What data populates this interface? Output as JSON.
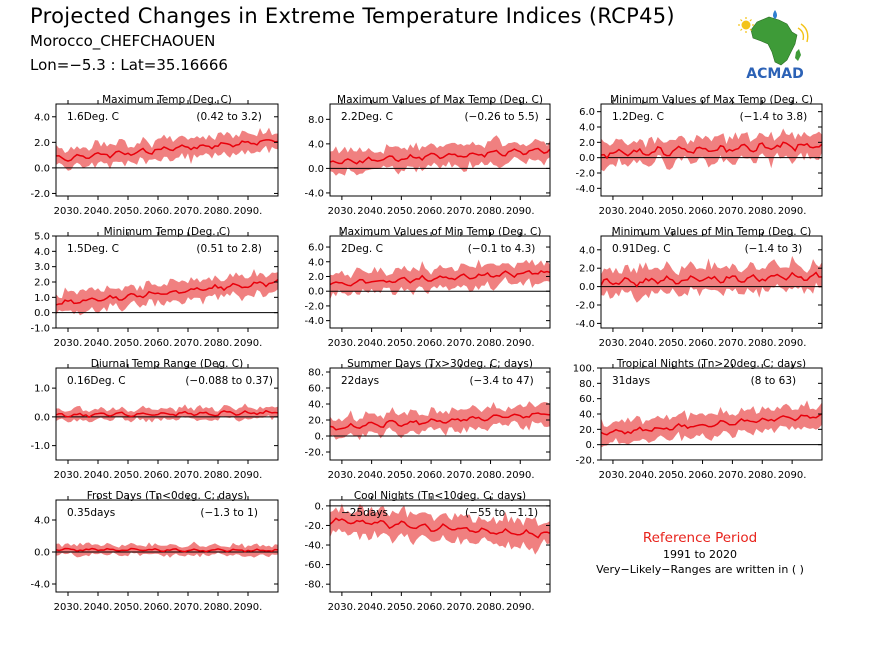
{
  "header": {
    "title": "Projected Changes in Extreme Temperature Indices (RCP45)",
    "location": "Morocco_CHEFCHAOUEN",
    "coords": "Lon=−5.3 : Lat=35.16666"
  },
  "logo": {
    "name": "ACMAD",
    "icon": "africa-map-logo"
  },
  "reference": {
    "title": "Reference Period",
    "years": "1991 to 2020",
    "note": "Very−Likely−Ranges are written in ( )"
  },
  "colors": {
    "band": "#f08080",
    "line": "#e8000b",
    "refline": "#000000",
    "title_red": "#e8231c"
  },
  "chart_data": [
    {
      "type": "line",
      "title": "Maximum Temp (Deg. C)",
      "value": "1.6Deg. C",
      "range": "(0.42 to 3.2)",
      "x_ticks": [
        "2030.",
        "2040.",
        "2050.",
        "2060.",
        "2070.",
        "2080.",
        "2090."
      ],
      "xlim": [
        2026,
        2100
      ],
      "y_ticks": [
        -2.0,
        0.0,
        2.0,
        4.0
      ],
      "y_tick_labels": [
        "-2.0",
        "0.0",
        "2.0",
        "4.0"
      ],
      "ylim": [
        -2.2,
        5.0
      ],
      "start": 0.7,
      "end": 2.2,
      "amp": 1.2,
      "noise": 0.25,
      "dip": 0
    },
    {
      "type": "line",
      "title": "Maximum Values of Max Temp (Deg. C)",
      "value": "2.2Deg. C",
      "range": "(−0.26 to 5.5)",
      "x_ticks": [
        "2030.",
        "2040.",
        "2050.",
        "2060.",
        "2070.",
        "2080.",
        "2090."
      ],
      "xlim": [
        2026,
        2100
      ],
      "y_ticks": [
        -4.0,
        0.0,
        4.0,
        8.0
      ],
      "y_tick_labels": [
        "-4.0",
        "0.0",
        "4.0",
        "8.0"
      ],
      "ylim": [
        -4.5,
        10.5
      ],
      "start": 1.0,
      "end": 3.0,
      "amp": 2.8,
      "noise": 0.5,
      "dip": 0
    },
    {
      "type": "line",
      "title": "Minimum Values of Max Temp (Deg. C)",
      "value": "1.2Deg. C",
      "range": "(−1.4 to 3.8)",
      "x_ticks": [
        "2030.",
        "2040.",
        "2050.",
        "2060.",
        "2070.",
        "2080.",
        "2090."
      ],
      "xlim": [
        2026,
        2100
      ],
      "y_ticks": [
        -4.0,
        -2.0,
        0.0,
        2.0,
        4.0,
        6.0
      ],
      "y_tick_labels": [
        "-4.0",
        "-2.0",
        "0.0",
        "2.0",
        "4.0",
        "6.0"
      ],
      "ylim": [
        -5.0,
        7.0
      ],
      "start": 0.5,
      "end": 1.6,
      "amp": 2.5,
      "noise": 0.6,
      "dip": 0
    },
    {
      "type": "line",
      "title": "Minimum Temp (Deg. C)",
      "value": "1.5Deg. C",
      "range": "(0.51 to 2.8)",
      "x_ticks": [
        "2030.",
        "2040.",
        "2050.",
        "2060.",
        "2070.",
        "2080.",
        "2090."
      ],
      "xlim": [
        2026,
        2100
      ],
      "y_ticks": [
        -1.0,
        0.0,
        1.0,
        2.0,
        3.0,
        4.0,
        5.0
      ],
      "y_tick_labels": [
        "-1.0",
        "0.0",
        "1.0",
        "2.0",
        "3.0",
        "4.0",
        "5.0"
      ],
      "ylim": [
        -1.0,
        5.0
      ],
      "start": 0.6,
      "end": 2.0,
      "amp": 1.0,
      "noise": 0.2,
      "dip": 0
    },
    {
      "type": "line",
      "title": "Maximum Values of Min Temp (Deg. C)",
      "value": "2Deg. C",
      "range": "(−0.1 to 4.3)",
      "x_ticks": [
        "2030.",
        "2040.",
        "2050.",
        "2060.",
        "2070.",
        "2080.",
        "2090."
      ],
      "xlim": [
        2026,
        2100
      ],
      "y_ticks": [
        -4.0,
        -2.0,
        0.0,
        2.0,
        4.0,
        6.0
      ],
      "y_tick_labels": [
        "-4.0",
        "-2.0",
        "0.0",
        "2.0",
        "4.0",
        "6.0"
      ],
      "ylim": [
        -5.0,
        7.5
      ],
      "start": 1.0,
      "end": 2.6,
      "amp": 2.2,
      "noise": 0.45,
      "dip": 0
    },
    {
      "type": "line",
      "title": "Minimum Values of Min Temp (Deg. C)",
      "value": "0.91Deg. C",
      "range": "(−1.4 to 3)",
      "x_ticks": [
        "2030.",
        "2040.",
        "2050.",
        "2060.",
        "2070.",
        "2080.",
        "2090."
      ],
      "xlim": [
        2026,
        2100
      ],
      "y_ticks": [
        -4.0,
        -2.0,
        0.0,
        2.0,
        4.0
      ],
      "y_tick_labels": [
        "-4.0",
        "-2.0",
        "0.0",
        "2.0",
        "4.0"
      ],
      "ylim": [
        -4.5,
        5.5
      ],
      "start": 0.4,
      "end": 1.2,
      "amp": 2.2,
      "noise": 0.5,
      "dip": 0
    },
    {
      "type": "line",
      "title": "Diurnal Temp Range (Deg. C)",
      "value": "0.16Deg. C",
      "range": "(−0.088 to 0.37)",
      "x_ticks": [
        "2030.",
        "2040.",
        "2050.",
        "2060.",
        "2070.",
        "2080.",
        "2090."
      ],
      "xlim": [
        2026,
        2100
      ],
      "y_ticks": [
        -1.0,
        0.0,
        1.0
      ],
      "y_tick_labels": [
        "-1.0",
        "0.0",
        "1.0"
      ],
      "ylim": [
        -1.5,
        1.7
      ],
      "start": 0.05,
      "end": 0.15,
      "amp": 0.3,
      "noise": 0.08,
      "dip": 0
    },
    {
      "type": "line",
      "title": "Summer Days (Tx>30deg. C; days)",
      "value": "22days",
      "range": "(−3.4 to 47)",
      "x_ticks": [
        "2030.",
        "2040.",
        "2050.",
        "2060.",
        "2070.",
        "2080.",
        "2090."
      ],
      "xlim": [
        2026,
        2100
      ],
      "y_ticks": [
        -20,
        0,
        20,
        40,
        60,
        80
      ],
      "y_tick_labels": [
        "-20.",
        "0.",
        "20.",
        "40.",
        "60.",
        "80."
      ],
      "ylim": [
        -30,
        85
      ],
      "start": 10,
      "end": 28,
      "amp": 20,
      "noise": 4,
      "dip": 0
    },
    {
      "type": "line",
      "title": "Tropical Nights (Tn>20deg. C; days)",
      "value": "31days",
      "range": "(8 to 63)",
      "x_ticks": [
        "2030.",
        "2040.",
        "2050.",
        "2060.",
        "2070.",
        "2080.",
        "2090."
      ],
      "xlim": [
        2026,
        2100
      ],
      "y_ticks": [
        -20,
        0,
        20,
        40,
        60,
        80,
        100
      ],
      "y_tick_labels": [
        "-20.",
        "0.",
        "20.",
        "40.",
        "60.",
        "80.",
        "100."
      ],
      "ylim": [
        -20,
        100
      ],
      "start": 15,
      "end": 38,
      "amp": 22,
      "noise": 4,
      "dip": 0
    },
    {
      "type": "line",
      "title": "Frost Days (Tn<0deg. C; days)",
      "value": "0.35days",
      "range": "(−1.3 to 1)",
      "x_ticks": [
        "2030.",
        "2040.",
        "2050.",
        "2060.",
        "2070.",
        "2080.",
        "2090."
      ],
      "xlim": [
        2026,
        2100
      ],
      "y_ticks": [
        -4.0,
        0.0,
        4.0
      ],
      "y_tick_labels": [
        "-4.0",
        "0.0",
        "4.0"
      ],
      "ylim": [
        -5.0,
        6.5
      ],
      "start": 0.3,
      "end": 0.2,
      "amp": 1.0,
      "noise": 0.2,
      "dip": 0
    },
    {
      "type": "line",
      "title": "Cool Nights (Tn<10deg. C; days)",
      "value": "−25days",
      "range": "(−55 to −1.1)",
      "x_ticks": [
        "2030.",
        "2040.",
        "2050.",
        "2060.",
        "2070.",
        "2080.",
        "2090."
      ],
      "xlim": [
        2026,
        2100
      ],
      "y_ticks": [
        -80,
        -60,
        -40,
        -20,
        0
      ],
      "y_tick_labels": [
        "-80.",
        "-60.",
        "-40.",
        "-20.",
        "0."
      ],
      "ylim": [
        -88,
        6
      ],
      "start": -15,
      "end": -30,
      "amp": 20,
      "noise": 4,
      "dip": 0
    }
  ]
}
